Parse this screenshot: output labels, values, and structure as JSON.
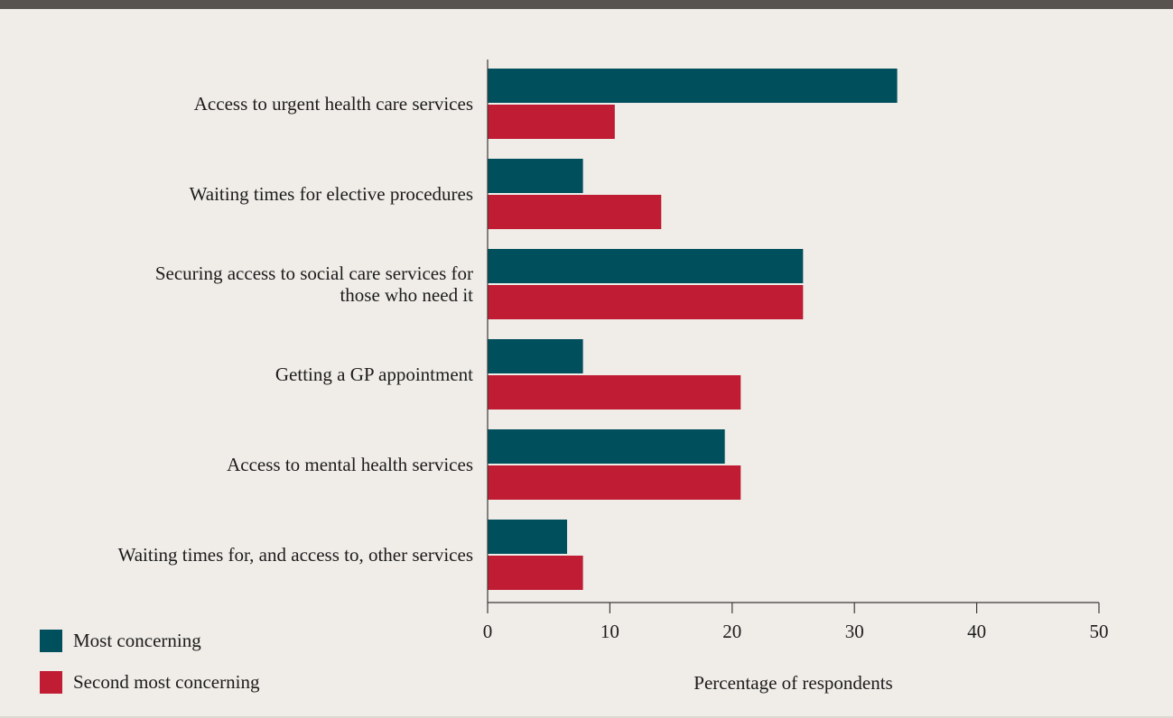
{
  "colors": {
    "most": "#004f5d",
    "second": "#c01c33",
    "axis": "#3a3a3a"
  },
  "legend": {
    "most_label": "Most concerning",
    "second_label": "Second most concerning"
  },
  "chart_data": {
    "type": "bar",
    "orientation": "horizontal",
    "categories": [
      [
        "Access to urgent health care services"
      ],
      [
        "Waiting times for elective procedures"
      ],
      [
        "Securing access to social care services for",
        "those who need it"
      ],
      [
        "Getting a GP appointment"
      ],
      [
        "Access to mental health services"
      ],
      [
        "Waiting times for, and access to, other services"
      ]
    ],
    "series": [
      {
        "name": "Most concerning",
        "values": [
          33.5,
          7.8,
          25.8,
          7.8,
          19.4,
          6.5
        ]
      },
      {
        "name": "Second most concerning",
        "values": [
          10.4,
          14.2,
          25.8,
          20.7,
          20.7,
          7.8
        ]
      }
    ],
    "xlabel": "Percentage of respondents",
    "xlim": [
      0,
      50
    ],
    "xticks": [
      "0",
      "10",
      "20",
      "30",
      "40",
      "50"
    ],
    "grid": false,
    "legend_position": "bottom-left"
  }
}
